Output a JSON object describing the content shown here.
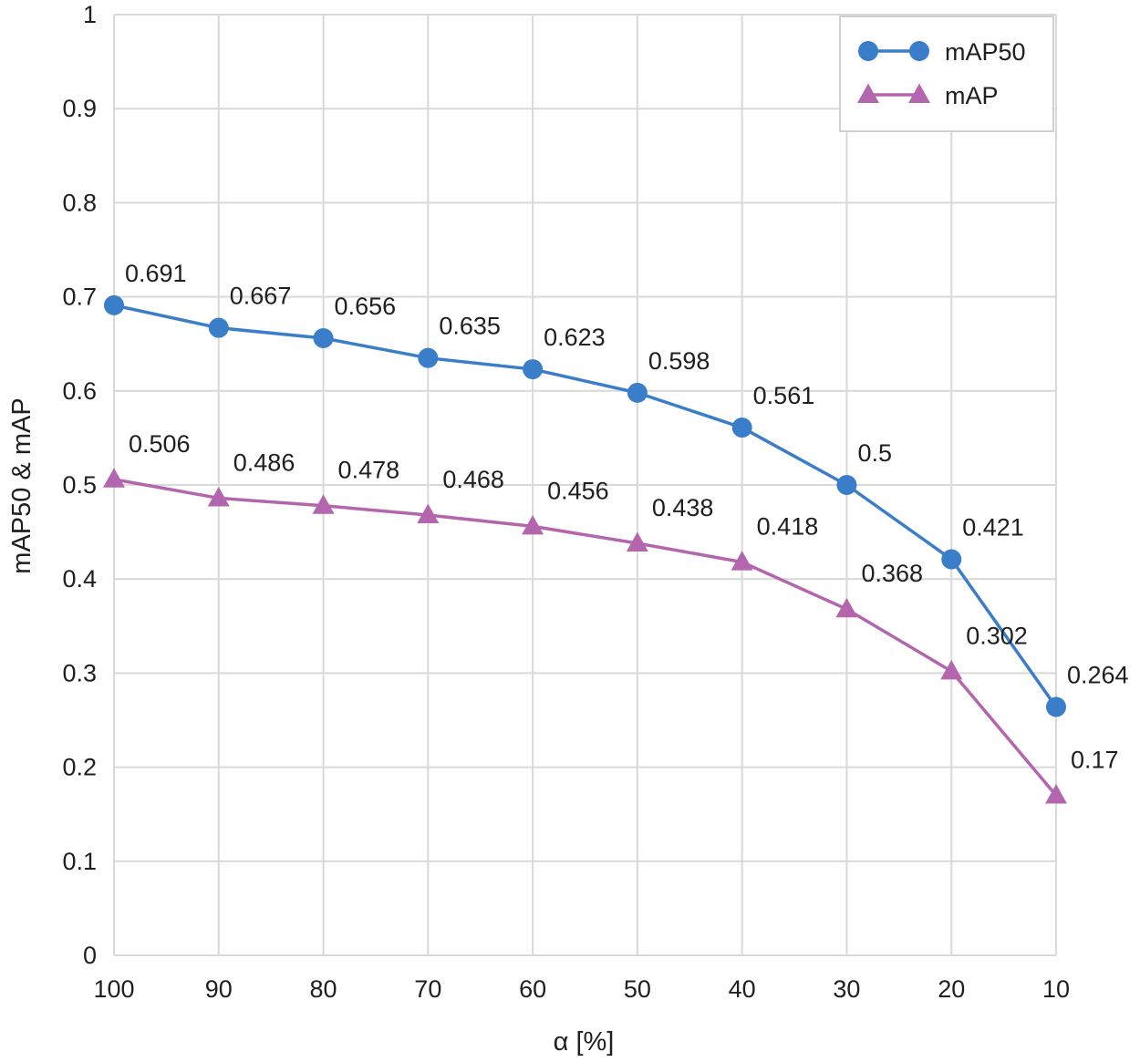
{
  "chart_data": {
    "type": "line",
    "title": "",
    "xlabel": "α [%]",
    "ylabel": "mAP50 & mAP",
    "categories": [
      "100",
      "90",
      "80",
      "70",
      "60",
      "50",
      "40",
      "30",
      "20",
      "10"
    ],
    "ylim": [
      0,
      1
    ],
    "yticks": [
      "0",
      "0.1",
      "0.2",
      "0.3",
      "0.4",
      "0.5",
      "0.6",
      "0.7",
      "0.8",
      "0.9",
      "1"
    ],
    "grid": true,
    "legend_position": "top-right",
    "series": [
      {
        "name": "mAP50",
        "marker": "circle",
        "color": "#3A7DC9",
        "values": [
          0.691,
          0.667,
          0.656,
          0.635,
          0.623,
          0.598,
          0.561,
          0.5,
          0.421,
          0.264
        ],
        "labels": [
          "0.691",
          "0.667",
          "0.656",
          "0.635",
          "0.623",
          "0.598",
          "0.561",
          "0.5",
          "0.421",
          "0.264"
        ]
      },
      {
        "name": "mAP",
        "marker": "triangle",
        "color": "#B366AD",
        "values": [
          0.506,
          0.486,
          0.478,
          0.468,
          0.456,
          0.438,
          0.418,
          0.368,
          0.302,
          0.17
        ],
        "labels": [
          "0.506",
          "0.486",
          "0.478",
          "0.468",
          "0.456",
          "0.438",
          "0.418",
          "0.368",
          "0.302",
          "0.17"
        ]
      }
    ]
  }
}
